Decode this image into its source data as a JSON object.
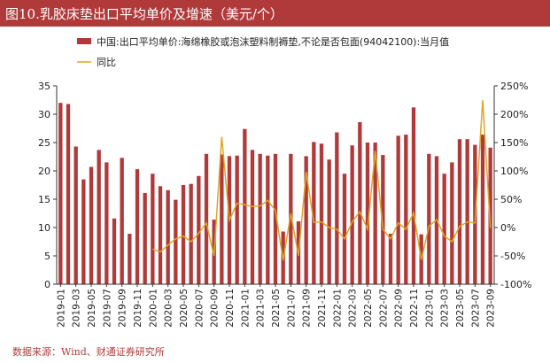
{
  "header": {
    "title": "图10.乳胶床垫出口平均单价及增速（美元/个）"
  },
  "footer": {
    "source": "数据来源：Wind、财通证券研究所"
  },
  "colors": {
    "bar": "#b03a3a",
    "line": "#e0a526",
    "axis": "#333333",
    "title_bg": "#b03a3a"
  },
  "chart_data": {
    "type": "bar",
    "title": "图10.乳胶床垫出口平均单价及增速（美元/个）",
    "categories": [
      "2019-01",
      "2019-02",
      "2019-03",
      "2019-04",
      "2019-05",
      "2019-06",
      "2019-07",
      "2019-08",
      "2019-09",
      "2019-10",
      "2019-11",
      "2019-12",
      "2020-01",
      "2020-02",
      "2020-03",
      "2020-04",
      "2020-05",
      "2020-06",
      "2020-07",
      "2020-08",
      "2020-09",
      "2020-10",
      "2020-11",
      "2020-12",
      "2021-01",
      "2021-02",
      "2021-03",
      "2021-04",
      "2021-05",
      "2021-06",
      "2021-07",
      "2021-08",
      "2021-09",
      "2021-10",
      "2021-11",
      "2021-12",
      "2022-01",
      "2022-02",
      "2022-03",
      "2022-04",
      "2022-05",
      "2022-06",
      "2022-07",
      "2022-08",
      "2022-09",
      "2022-10",
      "2022-11",
      "2022-12",
      "2023-01",
      "2023-02",
      "2023-03",
      "2023-04",
      "2023-05",
      "2023-06",
      "2023-07",
      "2023-08",
      "2023-09"
    ],
    "x_tick_labels": [
      "2019-01",
      "2019-03",
      "2019-05",
      "2019-07",
      "2019-09",
      "2019-11",
      "2020-01",
      "2020-03",
      "2020-05",
      "2020-07",
      "2020-09",
      "2020-11",
      "2021-01",
      "2021-03",
      "2021-05",
      "2021-07",
      "2021-09",
      "2021-11",
      "2022-01",
      "2022-03",
      "2022-05",
      "2022-07",
      "2022-09",
      "2022-11",
      "2023-01",
      "2023-03",
      "2023-05",
      "2023-07",
      "2023-09"
    ],
    "series": [
      {
        "name": "中国:出口平均单价:海绵橡胶或泡沫塑料制褥垫,不论是否包面(94042100):当月值",
        "kind": "bar",
        "axis": "left",
        "values": [
          32,
          31.8,
          24.3,
          18.5,
          20.7,
          23.7,
          21.5,
          11.6,
          22.3,
          8.9,
          20.3,
          16.1,
          19.5,
          17.3,
          16.6,
          14.9,
          17.5,
          17.7,
          19.1,
          23,
          11.4,
          22.9,
          22.6,
          22.7,
          27.4,
          23.7,
          23,
          22.7,
          23,
          9.3,
          23,
          11.1,
          22.6,
          25.1,
          24.8,
          22,
          26.8,
          19.5,
          24.5,
          28.6,
          25,
          25,
          22.8,
          8.9,
          26.2,
          26.4,
          31.2,
          8.8,
          23,
          22.6,
          19.5,
          21.5,
          25.6,
          25.6,
          24.6,
          26.4,
          24.1
        ]
      },
      {
        "name": "同比",
        "kind": "line",
        "axis": "right",
        "values": [
          null,
          null,
          null,
          null,
          null,
          null,
          null,
          null,
          null,
          null,
          null,
          null,
          -38,
          -43,
          -31,
          -20,
          -15,
          -25,
          -10,
          8,
          -50,
          160,
          13,
          43,
          40,
          37,
          38,
          48,
          30,
          -58,
          25,
          -50,
          98,
          9,
          10,
          0,
          -3,
          -20,
          10,
          28,
          -3,
          135,
          -3,
          -20,
          8,
          -3,
          26,
          -57,
          2,
          14,
          -15,
          -25,
          2,
          10,
          8,
          225,
          -1
        ]
      }
    ],
    "legend": [
      {
        "label": "中国:出口平均单价:海绵橡胶或泡沫塑料制褥垫,不论是否包面(94042100):当月值",
        "kind": "bar"
      },
      {
        "label": "同比",
        "kind": "line"
      }
    ],
    "legend_position": "top",
    "y_left": {
      "ylim": [
        0,
        35
      ],
      "ticks": [
        "0",
        "5",
        "10",
        "15",
        "20",
        "25",
        "30",
        "35"
      ]
    },
    "y_right": {
      "ylim": [
        -100,
        250
      ],
      "ticks": [
        "-100%",
        "-50%",
        "0%",
        "50%",
        "100%",
        "150%",
        "200%",
        "250%"
      ]
    },
    "grid": false
  }
}
